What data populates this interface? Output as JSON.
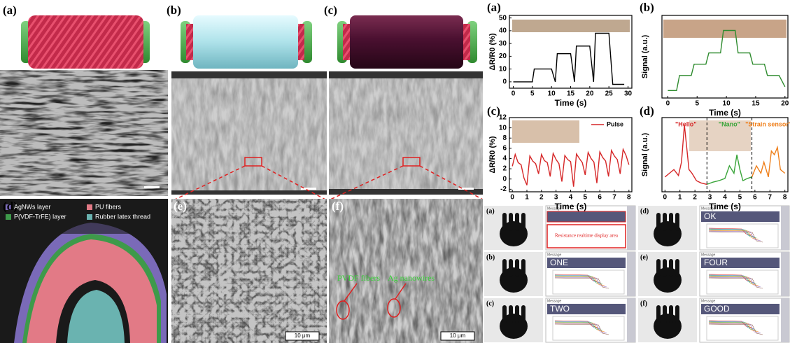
{
  "left": {
    "labels": [
      "(a)",
      "(b)",
      "(c)",
      "(d)",
      "(e)",
      "(f)"
    ],
    "legend": [
      "AgNWs layer",
      "PU fibers",
      "P(VDF-TrFE) layer",
      "Rubber latex thread"
    ],
    "annotations": [
      "PVDF fibers",
      "Ag nanowires"
    ],
    "scale_bar": "10 μm"
  },
  "chart_data": [
    {
      "type": "line",
      "title": "(a)",
      "x_label": "Time (s)",
      "y_label": "ΔR/R0 (%)",
      "color": "#000000",
      "x": [
        0,
        5,
        5.5,
        10,
        11,
        11.5,
        15,
        16,
        16.5,
        20,
        21,
        21.5,
        25,
        26,
        29
      ],
      "values": [
        0,
        0,
        10,
        10,
        0,
        22,
        22,
        0,
        28,
        28,
        0,
        38,
        38,
        -2,
        -2
      ],
      "xlim": [
        -1,
        31
      ],
      "xticks": [
        0,
        5,
        10,
        15,
        20,
        25,
        30
      ],
      "ylim": [
        -5,
        52
      ],
      "yticks": [
        0,
        10,
        20,
        30,
        40,
        50
      ]
    },
    {
      "type": "line",
      "title": "(b)",
      "x_label": "Time (s)",
      "y_label": "Signal (a.u.)",
      "color": "#2e8b2e",
      "x": [
        0,
        1.5,
        2,
        4,
        4.5,
        6.5,
        7,
        9,
        9.5,
        11.5,
        12,
        14,
        14.5,
        16.5,
        17,
        19,
        20
      ],
      "values": [
        0.1,
        0.1,
        0.3,
        0.3,
        0.45,
        0.45,
        0.6,
        0.6,
        0.9,
        0.9,
        0.6,
        0.6,
        0.45,
        0.45,
        0.3,
        0.3,
        0.15
      ],
      "xlim": [
        -1,
        20.5
      ],
      "xticks": [
        0,
        5,
        10,
        15,
        20
      ],
      "ylim": [
        0,
        1.1
      ]
    },
    {
      "type": "line",
      "title": "(c)",
      "x_label": "Time (s)",
      "y_label": "ΔR/R0 (%)",
      "series": [
        {
          "name": "Pulse",
          "color": "#d62728",
          "x": [
            0,
            0.2,
            0.4,
            0.6,
            0.8,
            1,
            1.2,
            1.4,
            1.6,
            1.8,
            2,
            2.2,
            2.4,
            2.6,
            2.8,
            3,
            3.2,
            3.4,
            3.6,
            3.8,
            4,
            4.2,
            4.4,
            4.6,
            4.8,
            5,
            5.2,
            5.4,
            5.6,
            5.8,
            6,
            6.2,
            6.4,
            6.6,
            6.8,
            7,
            7.2,
            7.4,
            7.6,
            7.8,
            8
          ],
          "values": [
            2.5,
            4.8,
            3.2,
            2.8,
            0.2,
            -1.2,
            4.5,
            3.5,
            3.0,
            1.0,
            4.8,
            3.6,
            3.2,
            0.5,
            5.0,
            3.8,
            3.0,
            -0.5,
            4.6,
            3.8,
            3.4,
            -1.5,
            4.9,
            4.0,
            3.2,
            0.8,
            5.2,
            4.0,
            3.3,
            -0.8,
            5.3,
            4.2,
            3.5,
            0.5,
            5.6,
            4.5,
            3.8,
            1.0,
            5.8,
            4.6,
            2.8
          ]
        }
      ],
      "xlim": [
        -0.2,
        8.2
      ],
      "xticks": [
        0,
        1,
        2,
        3,
        4,
        5,
        6,
        7,
        8
      ],
      "ylim": [
        -2.5,
        12
      ],
      "yticks": [
        -2,
        0,
        2,
        4,
        6,
        8,
        10,
        12
      ]
    },
    {
      "type": "line",
      "title": "(d)",
      "x_label": "Time (s)",
      "y_label": "Signal (a.u.)",
      "series": [
        {
          "name": "\"Hello\"",
          "color": "#d62728",
          "x": [
            0,
            0.3,
            0.6,
            0.9,
            1.1,
            1.3,
            1.4,
            1.6,
            1.8,
            2.1,
            2.4,
            2.8
          ],
          "values": [
            2,
            2.5,
            3,
            2.2,
            4,
            9,
            7,
            3,
            2.5,
            1.5,
            1.2,
            1
          ]
        },
        {
          "name": "\"Nano\"",
          "color": "#3aa53a",
          "x": [
            2.8,
            3.2,
            3.6,
            4.0,
            4.3,
            4.6,
            4.8,
            5.0,
            5.2,
            5.5,
            5.8
          ],
          "values": [
            1,
            1.3,
            1.5,
            1.8,
            3.5,
            2.5,
            5,
            3,
            1.5,
            1.8,
            2
          ]
        },
        {
          "name": "\"Strain sensor\"",
          "color": "#ef7f1a",
          "x": [
            5.8,
            6.1,
            6.4,
            6.6,
            6.9,
            7.1,
            7.3,
            7.5,
            7.7,
            8.0
          ],
          "values": [
            2,
            3.5,
            2.5,
            4,
            2,
            5.5,
            5,
            6,
            3,
            2.5
          ]
        }
      ],
      "xlim": [
        -0.2,
        8.2
      ],
      "xticks": [
        0,
        1,
        2,
        3,
        4,
        5,
        6,
        7,
        8
      ],
      "ylim": [
        0,
        10
      ]
    }
  ],
  "gestures": {
    "message_header": "Message",
    "panels": [
      {
        "label": "(a)",
        "display_area": "Resistance realtime display area"
      },
      {
        "label": "(b)",
        "message": "ONE"
      },
      {
        "label": "(c)",
        "message": "TWO"
      },
      {
        "label": "(d)",
        "message": "OK"
      },
      {
        "label": "(e)",
        "message": "FOUR"
      },
      {
        "label": "(f)",
        "message": "GOOD"
      }
    ]
  }
}
